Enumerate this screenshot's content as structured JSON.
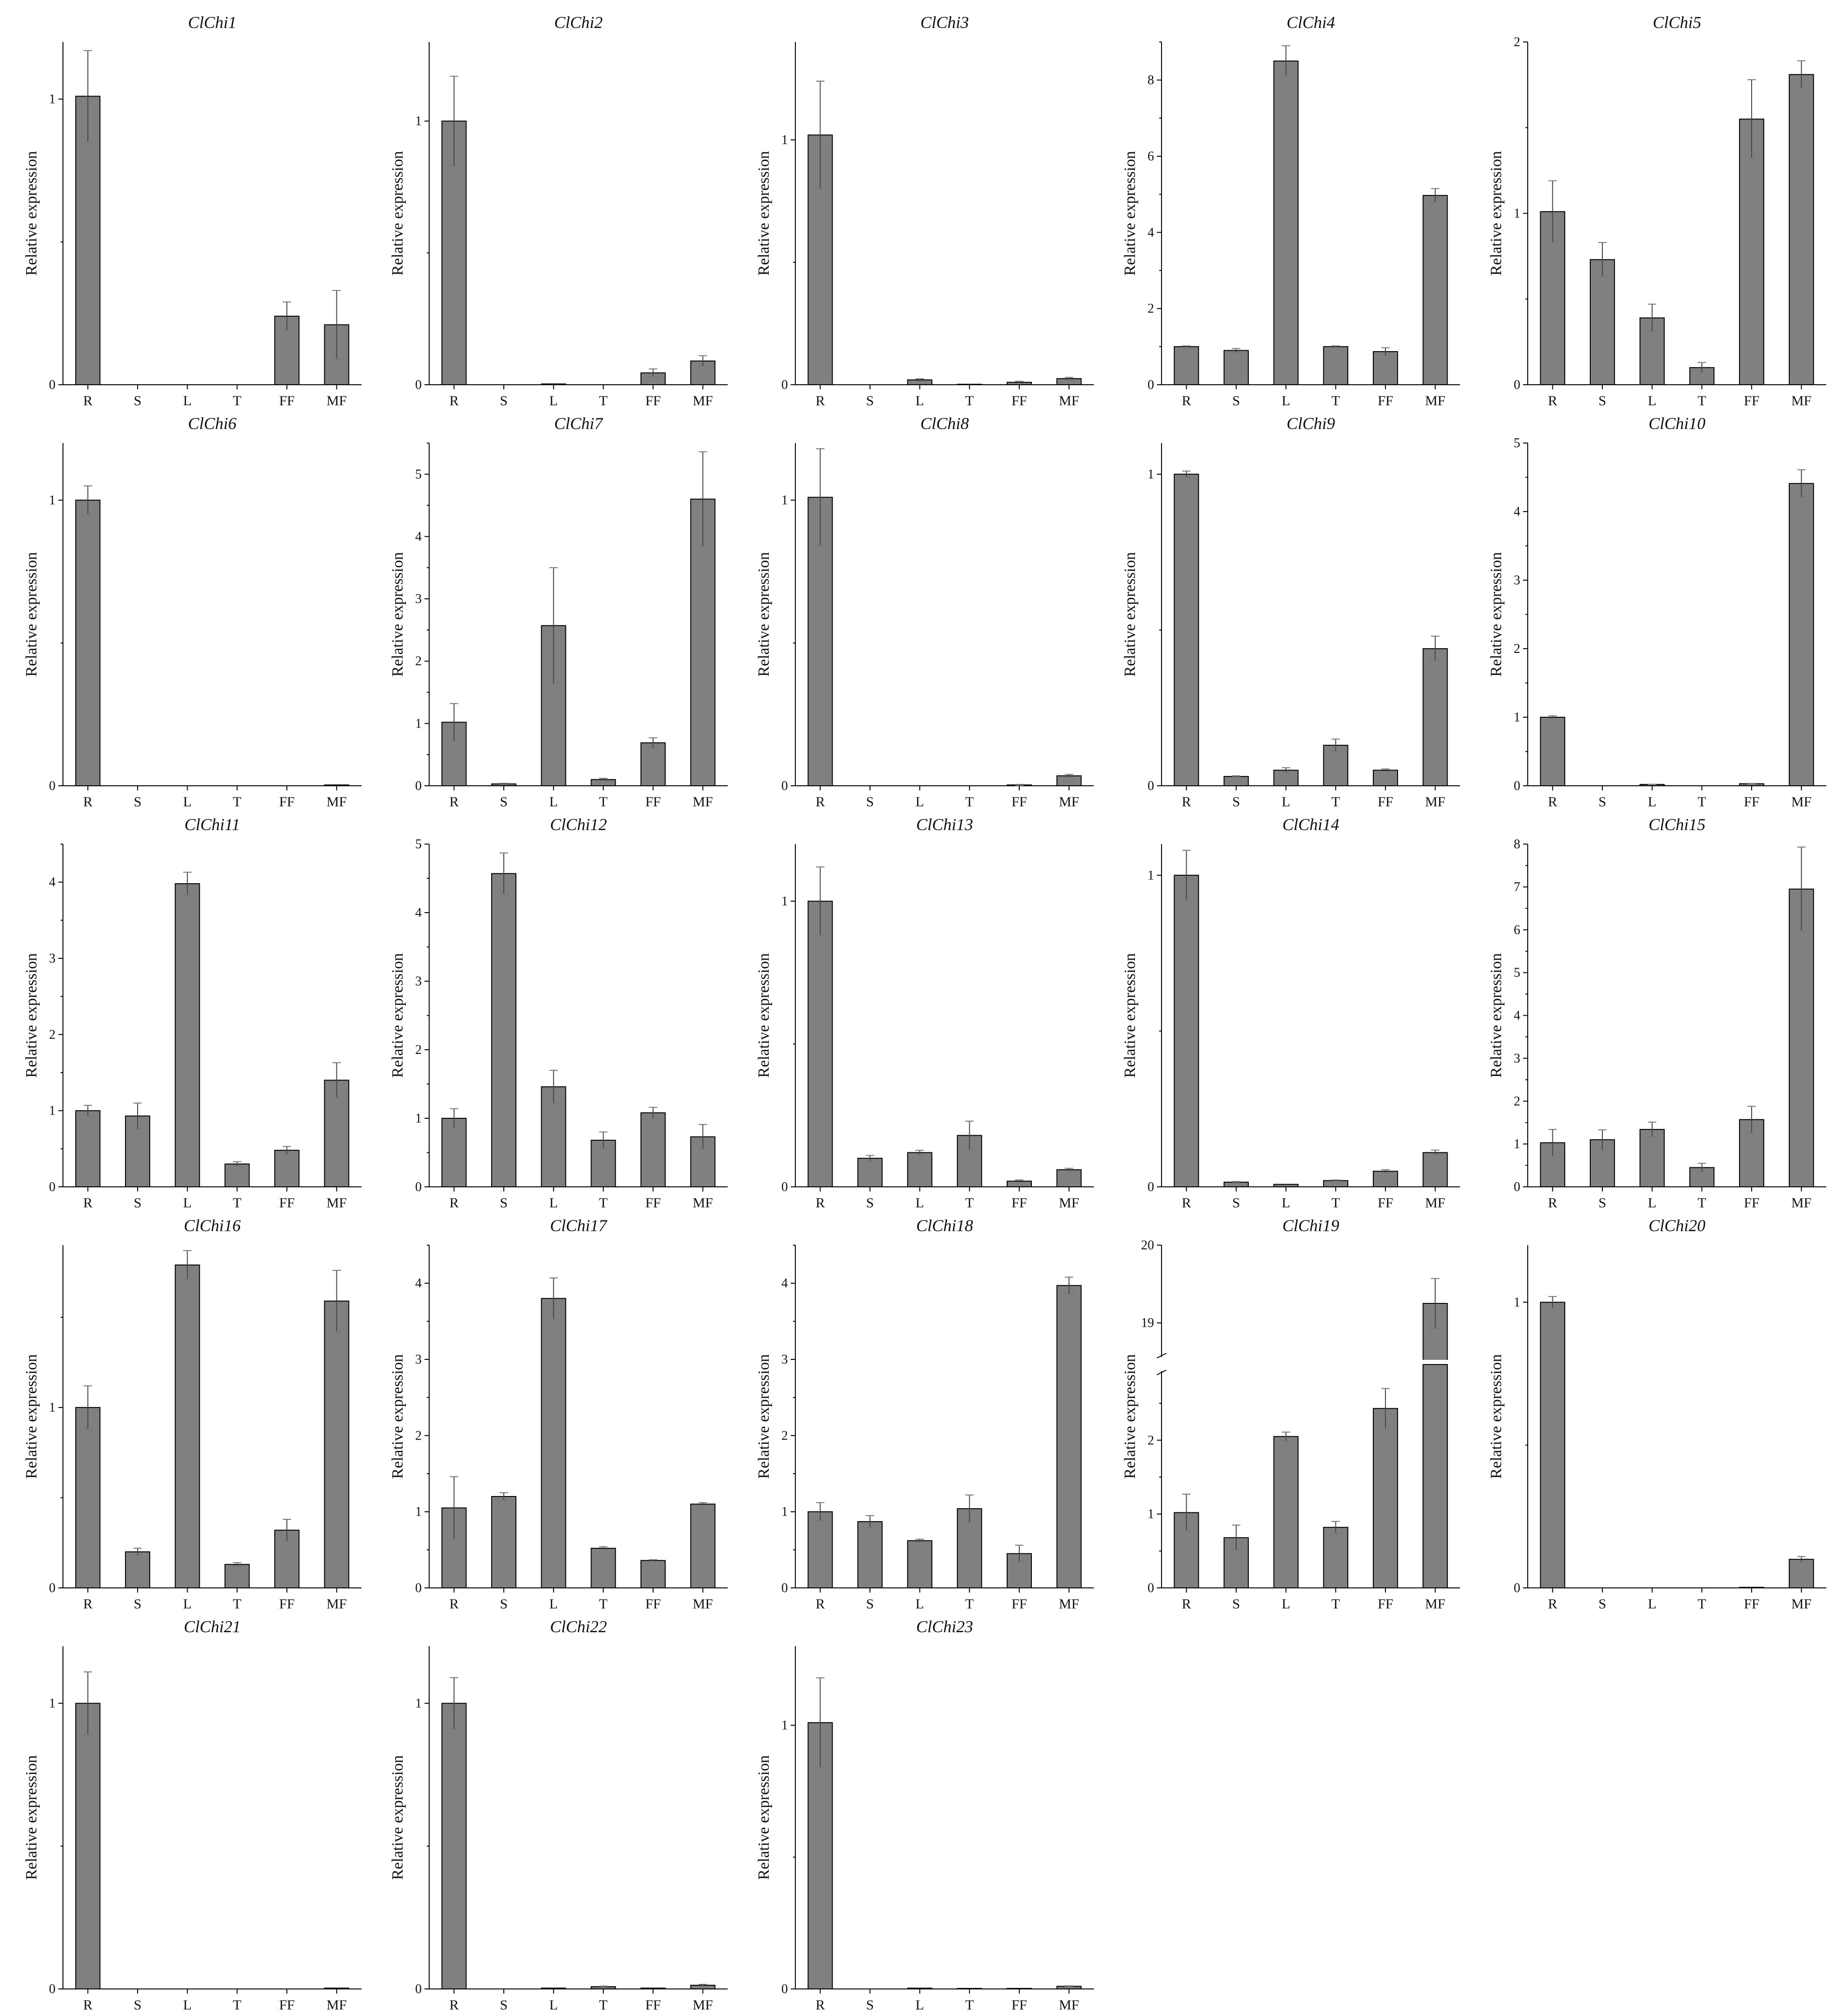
{
  "chart_data": [
    {
      "type": "bar",
      "title": "ClChi1",
      "ylabel": "Relative expression",
      "categories": [
        "R",
        "S",
        "L",
        "T",
        "FF",
        "MF"
      ],
      "values": [
        1.01,
        0,
        0,
        0,
        0.24,
        0.21
      ],
      "errors": [
        0.16,
        0,
        0,
        0,
        0.05,
        0.12
      ],
      "ylim": [
        0,
        1.2
      ],
      "yticks": [
        0,
        1
      ],
      "ytick_labels": [
        "0",
        "1"
      ]
    },
    {
      "type": "bar",
      "title": "ClChi2",
      "ylabel": "Relative expression",
      "categories": [
        "R",
        "S",
        "L",
        "T",
        "FF",
        "MF"
      ],
      "values": [
        1.0,
        0,
        0.003,
        0,
        0.045,
        0.09
      ],
      "errors": [
        0.17,
        0,
        0,
        0,
        0.015,
        0.02
      ],
      "ylim": [
        0,
        1.3
      ],
      "yticks": [
        0,
        1
      ],
      "ytick_labels": [
        "0",
        "1"
      ]
    },
    {
      "type": "bar",
      "title": "ClChi3",
      "ylabel": "Relative expression",
      "categories": [
        "R",
        "S",
        "L",
        "T",
        "FF",
        "MF"
      ],
      "values": [
        1.02,
        0,
        0.02,
        0.002,
        0.01,
        0.025
      ],
      "errors": [
        0.22,
        0,
        0.004,
        0,
        0.004,
        0.005
      ],
      "ylim": [
        0,
        1.4
      ],
      "yticks": [
        0,
        1
      ],
      "ytick_labels": [
        "0",
        "1"
      ]
    },
    {
      "type": "bar",
      "title": "ClChi4",
      "ylabel": "Relative expression",
      "categories": [
        "R",
        "S",
        "L",
        "T",
        "FF",
        "MF"
      ],
      "values": [
        1.0,
        0.9,
        8.5,
        1.0,
        0.87,
        4.97
      ],
      "errors": [
        0.02,
        0.05,
        0.4,
        0.02,
        0.1,
        0.18
      ],
      "ylim": [
        0,
        9
      ],
      "yticks": [
        0,
        2,
        4,
        6,
        8
      ],
      "ytick_labels": [
        "0",
        "2",
        "4",
        "6",
        "8"
      ]
    },
    {
      "type": "bar",
      "title": "ClChi5",
      "ylabel": "Relative expression",
      "categories": [
        "R",
        "S",
        "L",
        "T",
        "FF",
        "MF"
      ],
      "values": [
        1.01,
        0.73,
        0.39,
        0.1,
        1.55,
        1.81
      ],
      "errors": [
        0.18,
        0.1,
        0.08,
        0.03,
        0.23,
        0.08
      ],
      "ylim": [
        0,
        2
      ],
      "yticks": [
        0,
        1,
        2
      ],
      "ytick_labels": [
        "0",
        "1",
        "2"
      ]
    },
    {
      "type": "bar",
      "title": "ClChi6",
      "ylabel": "Relative expression",
      "categories": [
        "R",
        "S",
        "L",
        "T",
        "FF",
        "MF"
      ],
      "values": [
        1.0,
        0,
        0,
        0,
        0,
        0.003
      ],
      "errors": [
        0.05,
        0,
        0,
        0,
        0,
        0
      ],
      "ylim": [
        0,
        1.2
      ],
      "yticks": [
        0,
        1
      ],
      "ytick_labels": [
        "0",
        "1"
      ]
    },
    {
      "type": "bar",
      "title": "ClChi7",
      "ylabel": "Relative expression",
      "categories": [
        "R",
        "S",
        "L",
        "T",
        "FF",
        "MF"
      ],
      "values": [
        1.02,
        0.03,
        2.57,
        0.1,
        0.69,
        4.6
      ],
      "errors": [
        0.3,
        0.01,
        0.93,
        0.02,
        0.08,
        0.76
      ],
      "ylim": [
        0,
        5.5
      ],
      "yticks": [
        0,
        1,
        2,
        3,
        4,
        5
      ],
      "ytick_labels": [
        "0",
        "1",
        "2",
        "3",
        "4",
        "5"
      ]
    },
    {
      "type": "bar",
      "title": "ClChi8",
      "ylabel": "Relative expression",
      "categories": [
        "R",
        "S",
        "L",
        "T",
        "FF",
        "MF"
      ],
      "values": [
        1.01,
        0,
        0,
        0,
        0.003,
        0.035
      ],
      "errors": [
        0.17,
        0,
        0,
        0,
        0.002,
        0.005
      ],
      "ylim": [
        0,
        1.2
      ],
      "yticks": [
        0,
        1
      ],
      "ytick_labels": [
        "0",
        "1"
      ]
    },
    {
      "type": "bar",
      "title": "ClChi9",
      "ylabel": "Relative expression",
      "categories": [
        "R",
        "S",
        "L",
        "T",
        "FF",
        "MF"
      ],
      "values": [
        1.0,
        0.03,
        0.05,
        0.13,
        0.05,
        0.44
      ],
      "errors": [
        0.01,
        0.002,
        0.008,
        0.02,
        0.004,
        0.04
      ],
      "ylim": [
        0,
        1.1
      ],
      "yticks": [
        0,
        1
      ],
      "ytick_labels": [
        "0",
        "1"
      ]
    },
    {
      "type": "bar",
      "title": "ClChi10",
      "ylabel": "Relative expression",
      "categories": [
        "R",
        "S",
        "L",
        "T",
        "FF",
        "MF"
      ],
      "values": [
        1.0,
        0,
        0.02,
        0,
        0.03,
        4.41
      ],
      "errors": [
        0.02,
        0,
        0.003,
        0,
        0.005,
        0.2
      ],
      "ylim": [
        0,
        5
      ],
      "yticks": [
        0,
        1,
        2,
        3,
        4,
        5
      ],
      "ytick_labels": [
        "0",
        "1",
        "2",
        "3",
        "4",
        "5"
      ]
    },
    {
      "type": "bar",
      "title": "ClChi11",
      "ylabel": "Relative expression",
      "categories": [
        "R",
        "S",
        "L",
        "T",
        "FF",
        "MF"
      ],
      "values": [
        1.0,
        0.93,
        3.98,
        0.3,
        0.48,
        1.4
      ],
      "errors": [
        0.07,
        0.17,
        0.15,
        0.03,
        0.05,
        0.23
      ],
      "ylim": [
        0,
        4.5
      ],
      "yticks": [
        0,
        1,
        2,
        3,
        4
      ],
      "ytick_labels": [
        "0",
        "1",
        "2",
        "3",
        "4"
      ]
    },
    {
      "type": "bar",
      "title": "ClChi12",
      "ylabel": "Relative expression",
      "categories": [
        "R",
        "S",
        "L",
        "T",
        "FF",
        "MF"
      ],
      "values": [
        1.0,
        4.57,
        1.46,
        0.68,
        1.08,
        0.73
      ],
      "errors": [
        0.14,
        0.3,
        0.24,
        0.12,
        0.08,
        0.18
      ],
      "ylim": [
        0,
        5
      ],
      "yticks": [
        0,
        1,
        2,
        3,
        4,
        5
      ],
      "ytick_labels": [
        "0",
        "1",
        "2",
        "3",
        "4",
        "5"
      ]
    },
    {
      "type": "bar",
      "title": "ClChi13",
      "ylabel": "Relative expression",
      "categories": [
        "R",
        "S",
        "L",
        "T",
        "FF",
        "MF"
      ],
      "values": [
        1.0,
        0.1,
        0.12,
        0.18,
        0.02,
        0.06
      ],
      "errors": [
        0.12,
        0.01,
        0.008,
        0.05,
        0.004,
        0.005
      ],
      "ylim": [
        0,
        1.2
      ],
      "yticks": [
        0,
        1
      ],
      "ytick_labels": [
        "0",
        "1"
      ]
    },
    {
      "type": "bar",
      "title": "ClChi14",
      "ylabel": "Relative expression",
      "categories": [
        "R",
        "S",
        "L",
        "T",
        "FF",
        "MF"
      ],
      "values": [
        1.0,
        0.015,
        0.008,
        0.02,
        0.05,
        0.11
      ],
      "errors": [
        0.08,
        0.002,
        0,
        0.002,
        0.005,
        0.008
      ],
      "ylim": [
        0,
        1.1
      ],
      "yticks": [
        0,
        1
      ],
      "ytick_labels": [
        "0",
        "1"
      ]
    },
    {
      "type": "bar",
      "title": "ClChi15",
      "ylabel": "Relative expression",
      "categories": [
        "R",
        "S",
        "L",
        "T",
        "FF",
        "MF"
      ],
      "values": [
        1.03,
        1.1,
        1.34,
        0.45,
        1.57,
        6.95
      ],
      "errors": [
        0.31,
        0.23,
        0.17,
        0.1,
        0.31,
        0.98
      ],
      "ylim": [
        0,
        8
      ],
      "yticks": [
        0,
        1,
        2,
        3,
        4,
        5,
        6,
        7,
        8
      ],
      "ytick_labels": [
        "0",
        "1",
        "2",
        "3",
        "4",
        "5",
        "6",
        "7",
        "8"
      ]
    },
    {
      "type": "bar",
      "title": "ClChi16",
      "ylabel": "Relative expression",
      "categories": [
        "R",
        "S",
        "L",
        "T",
        "FF",
        "MF"
      ],
      "values": [
        1.0,
        0.2,
        1.79,
        0.13,
        0.32,
        1.59
      ],
      "errors": [
        0.12,
        0.02,
        0.08,
        0.01,
        0.06,
        0.17
      ],
      "ylim": [
        0,
        1.9
      ],
      "yticks": [
        0,
        1
      ],
      "ytick_labels": [
        "0",
        "1"
      ]
    },
    {
      "type": "bar",
      "title": "ClChi17",
      "ylabel": "Relative expression",
      "categories": [
        "R",
        "S",
        "L",
        "T",
        "FF",
        "MF"
      ],
      "values": [
        1.05,
        1.2,
        3.8,
        0.52,
        0.36,
        1.1
      ],
      "errors": [
        0.41,
        0.05,
        0.27,
        0.02,
        0.01,
        0.02
      ],
      "ylim": [
        0,
        4.5
      ],
      "yticks": [
        0,
        1,
        2,
        3,
        4
      ],
      "ytick_labels": [
        "0",
        "1",
        "2",
        "3",
        "4"
      ]
    },
    {
      "type": "bar",
      "title": "ClChi18",
      "ylabel": "Relative expression",
      "categories": [
        "R",
        "S",
        "L",
        "T",
        "FF",
        "MF"
      ],
      "values": [
        1.0,
        0.87,
        0.62,
        1.04,
        0.45,
        3.97
      ],
      "errors": [
        0.12,
        0.08,
        0.02,
        0.18,
        0.11,
        0.11
      ],
      "ylim": [
        0,
        4.5
      ],
      "yticks": [
        0,
        1,
        2,
        3,
        4
      ],
      "ytick_labels": [
        "0",
        "1",
        "2",
        "3",
        "4"
      ]
    },
    {
      "type": "bar",
      "title": "ClChi19",
      "ylabel": "Relative expression",
      "categories": [
        "R",
        "S",
        "L",
        "T",
        "FF",
        "MF"
      ],
      "values": [
        1.02,
        0.68,
        2.05,
        0.82,
        2.43,
        19.25
      ],
      "errors": [
        0.25,
        0.17,
        0.06,
        0.08,
        0.27,
        0.32
      ],
      "broken_axis": true,
      "lower_ylim": [
        0,
        3
      ],
      "upper_ylim": [
        18.5,
        20
      ],
      "yticks_lower": [
        0,
        1,
        2
      ],
      "ytick_labels_lower": [
        "0",
        "1",
        "2"
      ],
      "yticks_upper": [
        19,
        20
      ],
      "ytick_labels_upper": [
        "19",
        "20"
      ]
    },
    {
      "type": "bar",
      "title": "ClChi20",
      "ylabel": "Relative expression",
      "categories": [
        "R",
        "S",
        "L",
        "T",
        "FF",
        "MF"
      ],
      "values": [
        1.0,
        0,
        0,
        0,
        0.002,
        0.1
      ],
      "errors": [
        0.02,
        0,
        0,
        0,
        0,
        0.01
      ],
      "ylim": [
        0,
        1.2
      ],
      "yticks": [
        0,
        1
      ],
      "ytick_labels": [
        "0",
        "1"
      ]
    },
    {
      "type": "bar",
      "title": "ClChi21",
      "ylabel": "Relative expression",
      "categories": [
        "R",
        "S",
        "L",
        "T",
        "FF",
        "MF"
      ],
      "values": [
        1.0,
        0,
        0,
        0,
        0,
        0.003
      ],
      "errors": [
        0.11,
        0,
        0,
        0,
        0,
        0
      ],
      "ylim": [
        0,
        1.2
      ],
      "yticks": [
        0,
        1
      ],
      "ytick_labels": [
        "0",
        "1"
      ]
    },
    {
      "type": "bar",
      "title": "ClChi22",
      "ylabel": "Relative expression",
      "categories": [
        "R",
        "S",
        "L",
        "T",
        "FF",
        "MF"
      ],
      "values": [
        1.0,
        0,
        0.003,
        0.008,
        0.003,
        0.013
      ],
      "errors": [
        0.09,
        0,
        0,
        0.002,
        0,
        0.003
      ],
      "ylim": [
        0,
        1.2
      ],
      "yticks": [
        0,
        1
      ],
      "ytick_labels": [
        "0",
        "1"
      ]
    },
    {
      "type": "bar",
      "title": "ClChi23",
      "ylabel": "Relative expression",
      "categories": [
        "R",
        "S",
        "L",
        "T",
        "FF",
        "MF"
      ],
      "values": [
        1.01,
        0,
        0.003,
        0.002,
        0.002,
        0.01
      ],
      "errors": [
        0.17,
        0,
        0,
        0,
        0,
        0.002
      ],
      "ylim": [
        0,
        1.3
      ],
      "yticks": [
        0,
        1
      ],
      "ytick_labels": [
        "0",
        "1"
      ]
    }
  ]
}
